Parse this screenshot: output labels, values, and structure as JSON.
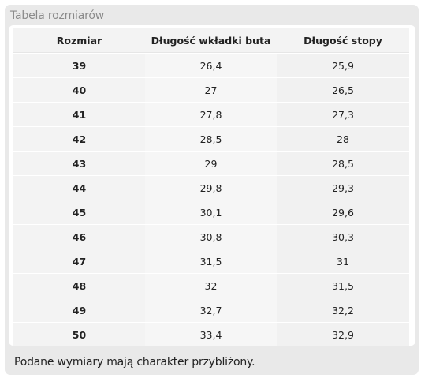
{
  "panel": {
    "title": "Tabela rozmiarów",
    "note": "Podane wymiary mają charakter przybliżony."
  },
  "table": {
    "headers": [
      "Rozmiar",
      "Długość wkładki buta",
      "Długość stopy"
    ],
    "rows": [
      [
        "39",
        "26,4",
        "25,9"
      ],
      [
        "40",
        "27",
        "26,5"
      ],
      [
        "41",
        "27,8",
        "27,3"
      ],
      [
        "42",
        "28,5",
        "28"
      ],
      [
        "43",
        "29",
        "28,5"
      ],
      [
        "44",
        "29,8",
        "29,3"
      ],
      [
        "45",
        "30,1",
        "29,6"
      ],
      [
        "46",
        "30,8",
        "30,3"
      ],
      [
        "47",
        "31,5",
        "31"
      ],
      [
        "48",
        "32",
        "31,5"
      ],
      [
        "49",
        "32,7",
        "32,2"
      ],
      [
        "50",
        "33,4",
        "32,9"
      ]
    ]
  }
}
